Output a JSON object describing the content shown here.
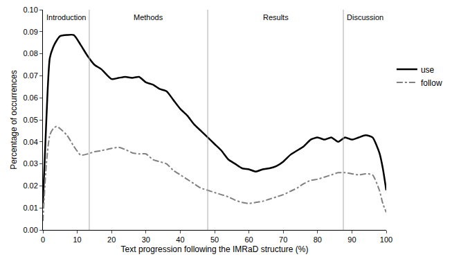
{
  "chart_data": {
    "type": "line",
    "x_label": "Text progression following the IMRaD structure (%)",
    "y_label": "Percentage of occurrences",
    "x": [
      0,
      1,
      2,
      3,
      4,
      5,
      7,
      9,
      11,
      13,
      15,
      17,
      20,
      22,
      24,
      26,
      28,
      30,
      32,
      34,
      36,
      38,
      40,
      42,
      44,
      46,
      48,
      50,
      52,
      54,
      56,
      58,
      60,
      62,
      64,
      66,
      68,
      70,
      72,
      74,
      76,
      78,
      80,
      82,
      84,
      86,
      88,
      90,
      92,
      94,
      96,
      98,
      99,
      100
    ],
    "series": [
      {
        "name": "use",
        "color": "#000000",
        "line_style": "solid",
        "values": [
          0.012,
          0.05,
          0.078,
          0.083,
          0.086,
          0.088,
          0.0885,
          0.0885,
          0.084,
          0.079,
          0.075,
          0.073,
          0.0685,
          0.069,
          0.0695,
          0.069,
          0.0695,
          0.067,
          0.066,
          0.064,
          0.063,
          0.059,
          0.055,
          0.052,
          0.048,
          0.045,
          0.042,
          0.039,
          0.036,
          0.032,
          0.03,
          0.028,
          0.0275,
          0.0265,
          0.0275,
          0.028,
          0.029,
          0.031,
          0.034,
          0.036,
          0.038,
          0.041,
          0.042,
          0.041,
          0.042,
          0.04,
          0.042,
          0.041,
          0.042,
          0.043,
          0.042,
          0.035,
          0.028,
          0.018
        ]
      },
      {
        "name": "follow",
        "color": "#808080",
        "line_style": "dashdot",
        "values": [
          0.004,
          0.03,
          0.043,
          0.046,
          0.047,
          0.046,
          0.043,
          0.038,
          0.034,
          0.0345,
          0.0355,
          0.036,
          0.037,
          0.0375,
          0.0365,
          0.035,
          0.0345,
          0.0345,
          0.032,
          0.031,
          0.03,
          0.027,
          0.025,
          0.023,
          0.021,
          0.019,
          0.018,
          0.017,
          0.016,
          0.015,
          0.0135,
          0.0125,
          0.012,
          0.0125,
          0.013,
          0.014,
          0.015,
          0.016,
          0.0175,
          0.019,
          0.021,
          0.0225,
          0.023,
          0.024,
          0.025,
          0.026,
          0.026,
          0.0255,
          0.025,
          0.0255,
          0.025,
          0.018,
          0.012,
          0.008
        ]
      }
    ],
    "sections": [
      {
        "label": "Introduction",
        "start": 0,
        "end": 13.5
      },
      {
        "label": "Methods",
        "start": 13.5,
        "end": 48
      },
      {
        "label": "Results",
        "start": 48,
        "end": 87.5
      },
      {
        "label": "Discussion",
        "start": 87.5,
        "end": 100
      }
    ],
    "xlim": [
      0,
      100
    ],
    "xticks": [
      0,
      10,
      20,
      30,
      40,
      50,
      60,
      70,
      80,
      90,
      100
    ],
    "ylim": [
      0,
      0.1
    ],
    "yticks": [
      {
        "value": 0,
        "label": "0.00"
      },
      0.01,
      0.02,
      0.03,
      0.04,
      0.05,
      0.06,
      0.07,
      0.08,
      0.09,
      {
        "value": 0.1,
        "label": "0.10"
      }
    ],
    "grid": false,
    "legend": "right"
  }
}
